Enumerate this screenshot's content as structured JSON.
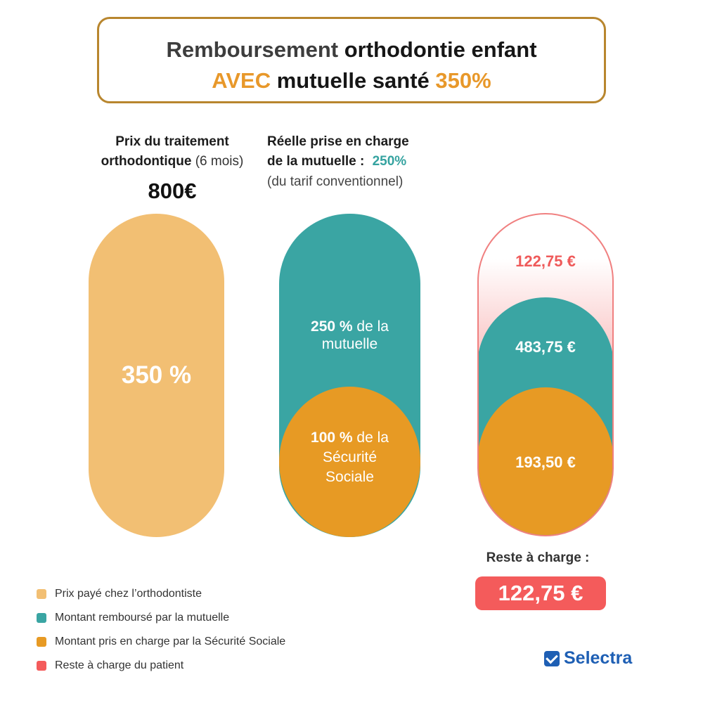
{
  "header": {
    "line1_a": "Remboursement",
    "line1_b": "orthodontie enfant",
    "line2_a": "AVEC",
    "line2_b": "mutuelle santé",
    "line2_c": "350%"
  },
  "column1": {
    "title_line1": "Prix du traitement",
    "title_line2_bold": "orthodontique",
    "title_line2_normal": "(6 mois)",
    "price": "800€",
    "bar_label": "350 %"
  },
  "column2": {
    "title_line1": "Réelle prise en charge",
    "title_line2": "de la mutuelle :",
    "title_pct": "250%",
    "subtitle": "(du tarif conventionnel)",
    "top_label_bold": "250 %",
    "top_label_rest": " de la",
    "top_label_line2": "mutuelle",
    "bottom_label_bold": "100 %",
    "bottom_label_rest": " de la",
    "bottom_label_line2": "Sécurité",
    "bottom_label_line3": "Sociale"
  },
  "column3": {
    "reste_value": "122,75 €",
    "mutuelle_value": "483,75 €",
    "secu_value": "193,50 €"
  },
  "reste": {
    "label": "Reste à charge :",
    "value": "122,75 €"
  },
  "legend": [
    {
      "label": "Prix payé chez l’orthodontiste",
      "color": "#f2bf73"
    },
    {
      "label": "Montant remboursé par la mutuelle",
      "color": "#3aa5a3"
    },
    {
      "label": "Montant pris en charge par la Sécurité Sociale",
      "color": "#e79a24"
    },
    {
      "label": "Reste à charge du patient",
      "color": "#f45b5b"
    }
  ],
  "brand": {
    "name": "Selectra",
    "icon": "checkmark-icon"
  }
}
